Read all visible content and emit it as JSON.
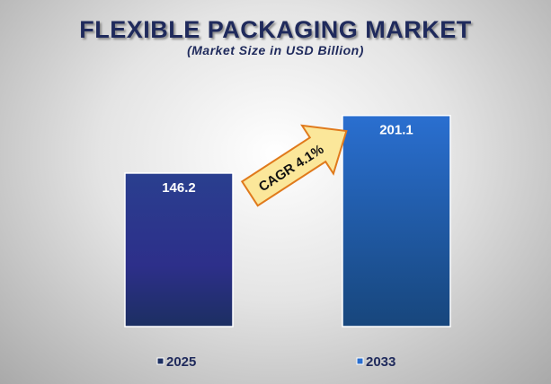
{
  "chart_data": {
    "type": "bar",
    "title": "FLEXIBLE PACKAGING MARKET",
    "subtitle": "(Market Size in USD Billion)",
    "categories": [
      "2025",
      "2033"
    ],
    "values": [
      146.2,
      201.1
    ],
    "data_labels": [
      "146.2",
      "201.1"
    ],
    "annotation": "CAGR 4.1%",
    "legend": [
      "2025",
      "2033"
    ],
    "legend_position": "bottom",
    "xlabel": "",
    "ylabel": "",
    "grid": false,
    "colors": {
      "bar1_top": "#2a3f8f",
      "bar1_bottom": "#1c2f62",
      "bar2_top": "#2a6fd0",
      "bar2_bottom": "#17467c",
      "arrow_fill": "#fbe79a",
      "arrow_stroke": "#e07a1c"
    }
  }
}
